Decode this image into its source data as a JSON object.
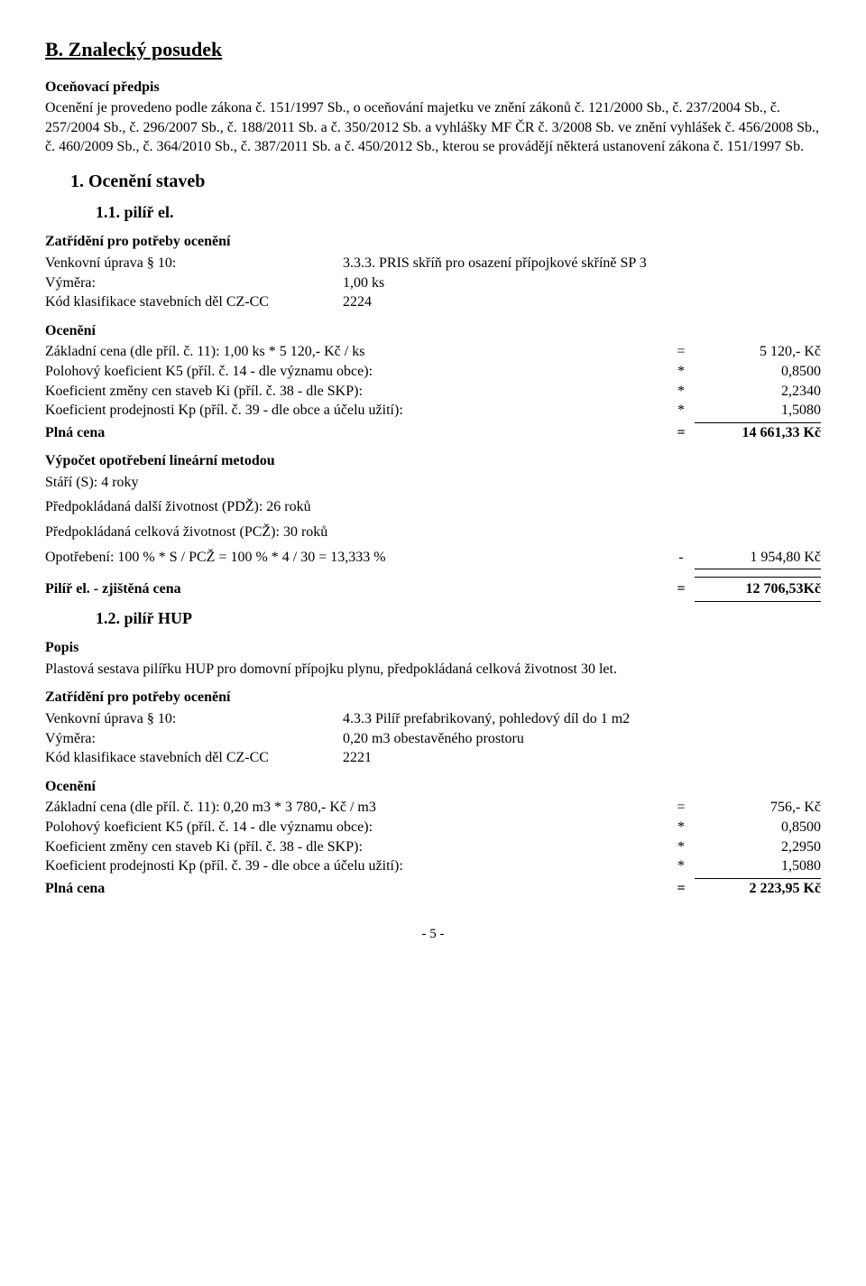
{
  "title": "B. Znalecký posudek",
  "predpis_head": "Oceňovací předpis",
  "predpis_text": "Ocenění je provedeno podle zákona č. 151/1997 Sb., o oceňování majetku ve znění zákonů č. 121/2000 Sb., č. 237/2004 Sb., č. 257/2004 Sb., č. 296/2007 Sb., č. 188/2011 Sb. a č. 350/2012 Sb. a vyhlášky MF ČR č. 3/2008 Sb. ve znění vyhlášek č. 456/2008 Sb., č. 460/2009 Sb., č. 364/2010 Sb., č. 387/2011 Sb. a č. 450/2012 Sb., kterou se provádějí některá ustanovení zákona č. 151/1997 Sb.",
  "sec1": "1. Ocenění staveb",
  "sec11": "1.1. pilíř   el.",
  "zatr_head": "Zatřídění pro potřeby ocenění",
  "r11": {
    "venk_k": "Venkovní úprava § 10:",
    "venk_v": "3.3.3. PRIS skříň pro osazení přípojkové skříně SP 3",
    "vym_k": "Výměra:",
    "vym_v": "1,00 ks",
    "kod_k": "Kód klasifikace stavebních děl CZ-CC",
    "kod_v": "2224"
  },
  "ocen_head": "Ocenění",
  "calc11": {
    "l1": "Základní cena (dle příl. č. 11):   1,00 ks * 5 120,- Kč / ks",
    "o1": "=",
    "r1": "5 120,- Kč",
    "l2": "Polohový koeficient K5 (příl. č. 14 - dle významu obce):",
    "o2": "*",
    "r2": "0,8500",
    "l3": "Koeficient změny cen staveb Ki (příl. č. 38 - dle SKP):",
    "o3": "*",
    "r3": "2,2340",
    "l4": "Koeficient prodejnosti Kp (příl. č. 39 - dle obce a účelu užití):",
    "o4": "*",
    "r4": "1,5080",
    "l5": "Plná cena",
    "o5": "=",
    "r5": "14 661,33 Kč"
  },
  "opo_head": "Výpočet opotřebení lineární metodou",
  "opo": {
    "l1": "Stáří (S): 4 roky",
    "l2": "Předpokládaná další životnost (PDŽ): 26 roků",
    "l3": "Předpokládaná celková životnost (PCŽ): 30 roků",
    "l4": "Opotřebení: 100 % * S / PCŽ = 100 % * 4 / 30 = 13,333 %",
    "o4": "-",
    "r4": "1 954,80 Kč"
  },
  "zj11_l": "Pilíř   el. - zjištěná cena",
  "zj11_o": "=",
  "zj11_r": "12 706,53Kč",
  "sec12": "1.2. pilíř HUP",
  "popis_head": "Popis",
  "popis_text": "Plastová sestava pilířku HUP pro domovní přípojku plynu, předpokládaná celková životnost 30 let.",
  "r12": {
    "venk_k": "Venkovní úprava § 10:",
    "venk_v": "4.3.3 Pilíř prefabrikovaný, pohledový díl do 1 m2",
    "vym_k": "Výměra:",
    "vym_v": "0,20 m3 obestavěného prostoru",
    "kod_k": "Kód klasifikace stavebních děl CZ-CC",
    "kod_v": "2221"
  },
  "calc12": {
    "l1": "Základní cena (dle příl. č. 11):   0,20 m3 * 3 780,- Kč / m3",
    "o1": "=",
    "r1": "756,- Kč",
    "l2": "Polohový koeficient K5 (příl. č. 14 - dle významu obce):",
    "o2": "*",
    "r2": "0,8500",
    "l3": "Koeficient změny cen staveb Ki (příl. č. 38 - dle SKP):",
    "o3": "*",
    "r3": "2,2950",
    "l4": "Koeficient prodejnosti Kp (příl. č. 39 - dle obce a účelu užití):",
    "o4": "*",
    "r4": "1,5080",
    "l5": "Plná cena",
    "o5": "=",
    "r5": "2 223,95 Kč"
  },
  "pagefoot": "- 5 -"
}
